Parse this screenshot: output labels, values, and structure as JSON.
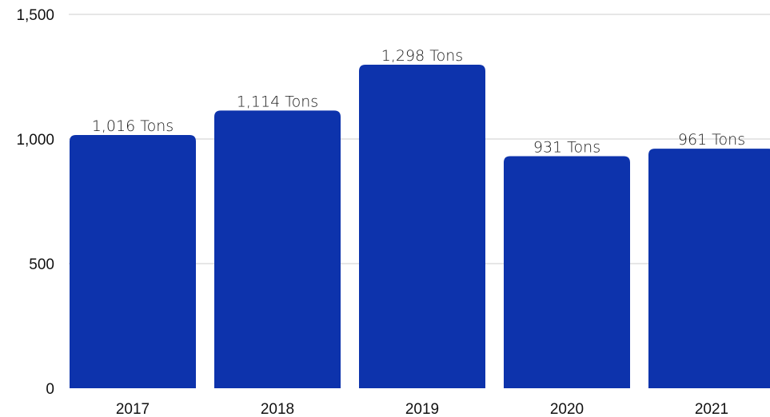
{
  "chart_data": {
    "type": "bar",
    "categories": [
      "2017",
      "2018",
      "2019",
      "2020",
      "2021"
    ],
    "values": [
      1016,
      1114,
      1298,
      931,
      961
    ],
    "data_labels": [
      "1,016 Tons",
      "1,114 Tons",
      "1,298 Tons",
      "931 Tons",
      "961 Tons"
    ],
    "yticks": [
      0,
      500,
      1000,
      1500
    ],
    "ytick_labels": [
      "0",
      "500",
      "1,000",
      "1,500"
    ],
    "ylim": [
      0,
      1500
    ],
    "grid": true,
    "bar_color": "#0d33ac",
    "title": "",
    "xlabel": "",
    "ylabel": ""
  }
}
